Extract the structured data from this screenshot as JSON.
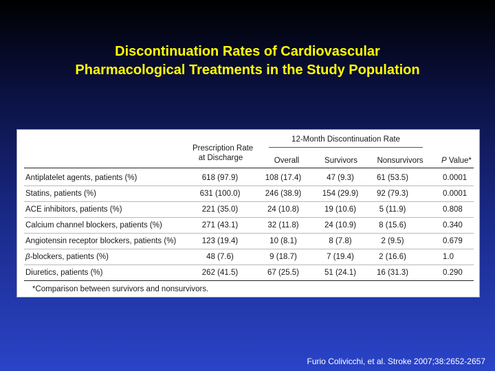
{
  "slide": {
    "title_line1": "Discontinuation Rates of Cardiovascular",
    "title_line2": "Pharmacological Treatments in the Study Population",
    "citation": "Furio Colivicchi, et al. Stroke 2007;38:2652-2657"
  },
  "table": {
    "group_header": "12-Month Discontinuation Rate",
    "columns": {
      "prescription_line1": "Prescription Rate",
      "prescription_line2": "at Discharge",
      "overall": "Overall",
      "survivors": "Survivors",
      "nonsurvivors": "Nonsurvivors",
      "p_value_italic": "P",
      "p_value_rest": " Value*"
    },
    "rows": [
      {
        "label": "Antiplatelet agents, patients (%)",
        "prescription": "618 (97.9)",
        "overall": "108 (17.4)",
        "survivors": "47 (9.3)",
        "nonsurvivors": "61 (53.5)",
        "p": "0.0001"
      },
      {
        "label": "Statins, patients (%)",
        "prescription": "631 (100.0)",
        "overall": "246 (38.9)",
        "survivors": "154 (29.9)",
        "nonsurvivors": "92 (79.3)",
        "p": "0.0001"
      },
      {
        "label": "ACE inhibitors, patients (%)",
        "prescription": "221 (35.0)",
        "overall": "24 (10.8)",
        "survivors": "19 (10.6)",
        "nonsurvivors": "5 (11.9)",
        "p": "0.808"
      },
      {
        "label": "Calcium channel blockers, patients (%)",
        "prescription": "271 (43.1)",
        "overall": "32 (11.8)",
        "survivors": "24 (10.9)",
        "nonsurvivors": "8 (15.6)",
        "p": "0.340"
      },
      {
        "label": "Angiotensin receptor blockers, patients (%)",
        "prescription": "123 (19.4)",
        "overall": "10 (8.1)",
        "survivors": "8 (7.8)",
        "nonsurvivors": "2 (9.5)",
        "p": "0.679"
      },
      {
        "label_symbol": "β",
        "label": "-blockers, patients (%)",
        "prescription": "48 (7.6)",
        "overall": "9 (18.7)",
        "survivors": "7 (19.4)",
        "nonsurvivors": "2 (16.6)",
        "p": "1.0"
      },
      {
        "label": "Diuretics, patients (%)",
        "prescription": "262 (41.5)",
        "overall": "67 (25.5)",
        "survivors": "51 (24.1)",
        "nonsurvivors": "16 (31.3)",
        "p": "0.290"
      }
    ],
    "footnote": "*Comparison between survivors and nonsurvivors."
  },
  "colors": {
    "title": "#ffff00",
    "background_top": "#000000",
    "background_bottom": "#2a44c8",
    "citation": "#ffffff"
  }
}
